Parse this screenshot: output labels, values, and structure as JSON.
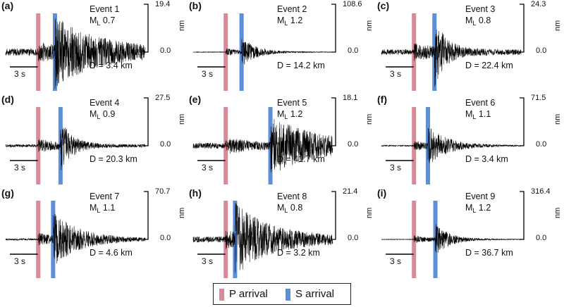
{
  "colors": {
    "p_arrival": "#d98a97",
    "s_arrival": "#5b8fd9",
    "trace": "#000000"
  },
  "legend": {
    "p_label": "P arrival",
    "s_label": "S arrival"
  },
  "chart_data": [
    {
      "type": "line",
      "panel": "(a)",
      "title": "Event 1",
      "magnitude_prefix": "M",
      "magnitude_sub": "L",
      "magnitude_value": "0.7",
      "distance": "D = 3.4 km",
      "ylim": [
        0,
        19.4
      ],
      "ymax_label": "19.4",
      "yzero_label": "0.0",
      "yunit": "nm",
      "scale_bar": "3 s",
      "duration_s": 15,
      "p_time_s": 3.5,
      "s_time_s": 5.3,
      "noise": 0.12,
      "amp": 1.0,
      "decay_s": 5.0
    },
    {
      "type": "line",
      "panel": "(b)",
      "title": "Event 2",
      "magnitude_prefix": "M",
      "magnitude_sub": "L",
      "magnitude_value": "1.2",
      "distance": "D = 14.2 km",
      "ylim": [
        0,
        108.6
      ],
      "ymax_label": "108.6",
      "yzero_label": "0.0",
      "yunit": "nm",
      "scale_bar": "3 s",
      "duration_s": 15,
      "p_time_s": 3.5,
      "s_time_s": 5.2,
      "noise": 0.01,
      "amp": 0.45,
      "decay_s": 1.5
    },
    {
      "type": "line",
      "panel": "(c)",
      "title": "Event 3",
      "magnitude_prefix": "M",
      "magnitude_sub": "L",
      "magnitude_value": "0.8",
      "distance": "D = 22.4 km",
      "ylim": [
        0,
        24.3
      ],
      "ymax_label": "24.3",
      "yzero_label": "0.0",
      "yunit": "nm",
      "scale_bar": "3 s",
      "duration_s": 15,
      "p_time_s": 3.5,
      "s_time_s": 5.7,
      "noise": 0.09,
      "amp": 1.0,
      "decay_s": 1.2
    },
    {
      "type": "line",
      "panel": "(d)",
      "title": "Event 4",
      "magnitude_prefix": "M",
      "magnitude_sub": "L",
      "magnitude_value": "0.9",
      "distance": "D = 20.3 km",
      "ylim": [
        0,
        27.5
      ],
      "ymax_label": "27.5",
      "yzero_label": "0.0",
      "yunit": "nm",
      "scale_bar": "3 s",
      "duration_s": 15,
      "p_time_s": 3.5,
      "s_time_s": 5.9,
      "noise": 0.05,
      "amp": 0.8,
      "decay_s": 1.2
    },
    {
      "type": "line",
      "panel": "(e)",
      "title": "Event 5",
      "magnitude_prefix": "M",
      "magnitude_sub": "L",
      "magnitude_value": "1.2",
      "distance": "D = 41.7 km",
      "ylim": [
        0,
        18.1
      ],
      "ymax_label": "18.1",
      "yzero_label": "0.0",
      "yunit": "nm",
      "scale_bar": "3 s",
      "duration_s": 15,
      "p_time_s": 3.5,
      "s_time_s": 8.3,
      "noise": 0.1,
      "amp": 0.9,
      "decay_s": 5.0
    },
    {
      "type": "line",
      "panel": "(f)",
      "title": "Event 6",
      "magnitude_prefix": "M",
      "magnitude_sub": "L",
      "magnitude_value": "1.1",
      "distance": "D = 3.4 km",
      "ylim": [
        0,
        71.5
      ],
      "ymax_label": "71.5",
      "yzero_label": "0.0",
      "yunit": "nm",
      "scale_bar": "3 s",
      "duration_s": 15,
      "p_time_s": 3.5,
      "s_time_s": 5.0,
      "noise": 0.02,
      "amp": 0.6,
      "decay_s": 2.0
    },
    {
      "type": "line",
      "panel": "(g)",
      "title": "Event 7",
      "magnitude_prefix": "M",
      "magnitude_sub": "L",
      "magnitude_value": "1.1",
      "distance": "D = 4.6 km",
      "ylim": [
        0,
        70.7
      ],
      "ymax_label": "70.7",
      "yzero_label": "0.0",
      "yunit": "nm",
      "scale_bar": "3 s",
      "duration_s": 15,
      "p_time_s": 3.5,
      "s_time_s": 5.1,
      "noise": 0.03,
      "amp": 0.8,
      "decay_s": 3.0
    },
    {
      "type": "line",
      "panel": "(h)",
      "title": "Event 8",
      "magnitude_prefix": "M",
      "magnitude_sub": "L",
      "magnitude_value": "0.8",
      "distance": "D = 3.2 km",
      "ylim": [
        0,
        21.4
      ],
      "ymax_label": "21.4",
      "yzero_label": "0.0",
      "yunit": "nm",
      "scale_bar": "3 s",
      "duration_s": 15,
      "p_time_s": 3.5,
      "s_time_s": 4.5,
      "noise": 0.1,
      "amp": 1.0,
      "decay_s": 4.0
    },
    {
      "type": "line",
      "panel": "(i)",
      "title": "Event 9",
      "magnitude_prefix": "M",
      "magnitude_sub": "L",
      "magnitude_value": "1.2",
      "distance": "D = 36.7 km",
      "ylim": [
        0,
        316.4
      ],
      "ymax_label": "316.4",
      "yzero_label": "0.0",
      "yunit": "nm",
      "scale_bar": "3 s",
      "duration_s": 15,
      "p_time_s": 3.5,
      "s_time_s": 5.8,
      "noise": 0.01,
      "amp": 0.5,
      "decay_s": 1.5
    }
  ]
}
